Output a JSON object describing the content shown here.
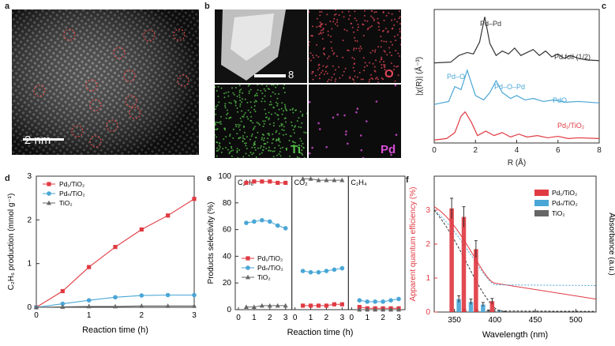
{
  "panel_labels": {
    "a": "a",
    "b": "b",
    "c": "c",
    "d": "d",
    "e": "e",
    "f": "f"
  },
  "panel_a": {
    "scale_bar": "2 nm"
  },
  "panel_b": {
    "scale_bar": "8 nm",
    "maps": [
      "O",
      "Ti",
      "Pd"
    ],
    "map_colors": [
      "#e0485a",
      "#56c24a",
      "#d84ed8"
    ]
  },
  "colors": {
    "red": "#e03a42",
    "blue": "#4aa6d6",
    "gray": "#666666"
  },
  "chart_data": [
    {
      "panel": "c",
      "type": "line",
      "xlabel": "R (Å)",
      "ylabel": "|χ(R)| (Å⁻³)",
      "xlim": [
        0,
        8
      ],
      "xticks": [
        0,
        2,
        4,
        6,
        8
      ],
      "series": [
        {
          "name": "Pd foil (1/2)",
          "color": "#333333",
          "offset": 5.4,
          "x": [
            0,
            0.8,
            1.2,
            1.6,
            1.9,
            2.2,
            2.45,
            2.7,
            3.0,
            3.3,
            3.6,
            3.9,
            4.2,
            4.5,
            4.8,
            5.1,
            5.4,
            5.7,
            6.0,
            6.3,
            6.6,
            7.0,
            7.4,
            8.0
          ],
          "y": [
            0,
            0.05,
            0.5,
            0.7,
            0.6,
            1.4,
            3.1,
            1.3,
            0.5,
            0.8,
            0.6,
            1.0,
            0.5,
            0.7,
            0.9,
            0.5,
            0.8,
            0.4,
            0.6,
            0.3,
            0.5,
            0.3,
            0.2,
            0.15
          ]
        },
        {
          "name": "PdO",
          "color": "#4aa6d6",
          "offset": 2.6,
          "x": [
            0,
            0.7,
            1.0,
            1.3,
            1.6,
            2.0,
            2.4,
            2.7,
            3.0,
            3.3,
            3.7,
            4.0,
            4.4,
            4.8,
            5.3,
            5.8,
            6.4,
            7.0,
            8.0
          ],
          "y": [
            0,
            0.2,
            1.2,
            1.0,
            2.3,
            0.6,
            0.3,
            0.8,
            1.6,
            0.8,
            0.4,
            0.6,
            0.3,
            0.4,
            0.2,
            0.3,
            0.15,
            0.2,
            0.1
          ]
        },
        {
          "name": "Pd₁/TiO₂",
          "color": "#e03a42",
          "offset": 0.2,
          "x": [
            0,
            0.6,
            1.0,
            1.3,
            1.5,
            1.8,
            2.1,
            2.5,
            2.9,
            3.3,
            3.7,
            4.1,
            4.5,
            5.0,
            5.5,
            6.0,
            6.5,
            7.0,
            8.0
          ],
          "y": [
            0,
            0.1,
            0.5,
            1.6,
            1.9,
            1.2,
            0.3,
            0.6,
            0.3,
            0.5,
            0.2,
            0.4,
            0.2,
            0.3,
            0.15,
            0.25,
            0.1,
            0.15,
            0.1
          ]
        }
      ],
      "annotations": [
        "Pd–Pd",
        "Pd–O",
        "Pd–O–Pd"
      ]
    },
    {
      "panel": "d",
      "type": "line",
      "xlabel": "Reaction time (h)",
      "ylabel": "C₂H₆ production (mmol g⁻¹)",
      "xlim": [
        0,
        3
      ],
      "ylim": [
        0,
        3
      ],
      "xticks": [
        0,
        1,
        2,
        3
      ],
      "yticks": [
        0,
        1,
        2,
        3
      ],
      "x": [
        0,
        0.5,
        1,
        1.5,
        2,
        2.5,
        3
      ],
      "series": [
        {
          "name": "Pd₁/TiO₂",
          "color": "#e03a42",
          "marker": "square",
          "values": [
            0,
            0.37,
            0.92,
            1.38,
            1.78,
            2.1,
            2.48
          ]
        },
        {
          "name": "Pdₙ/TiO₂",
          "color": "#4aa6d6",
          "marker": "circle",
          "values": [
            0,
            0.08,
            0.16,
            0.23,
            0.27,
            0.28,
            0.28
          ]
        },
        {
          "name": "TiO₂",
          "color": "#666666",
          "marker": "triangle",
          "values": [
            0,
            0.01,
            0.02,
            0.02,
            0.03,
            0.03,
            0.03
          ]
        }
      ]
    },
    {
      "panel": "e",
      "type": "line",
      "ylabel": "Products selectivity (%)",
      "xlabel": "Reaction time (h)",
      "ylim": [
        0,
        100
      ],
      "yticks": [
        0,
        20,
        40,
        60,
        80,
        100
      ],
      "xticks": [
        0,
        1,
        2,
        3
      ],
      "x": [
        0.5,
        1,
        1.5,
        2,
        2.5,
        3
      ],
      "subpanels": [
        {
          "title": "C₂H₆",
          "series": [
            {
              "name": "Pd₁/TiO₂",
              "color": "#e03a42",
              "marker": "square",
              "values": [
                95,
                96,
                96,
                96,
                95,
                95
              ]
            },
            {
              "name": "Pdₙ/TiO₂",
              "color": "#4aa6d6",
              "marker": "circle",
              "values": [
                65,
                66,
                67,
                66,
                63,
                61
              ]
            },
            {
              "name": "TiO₂",
              "color": "#666666",
              "marker": "triangle",
              "values": [
                2,
                2,
                3,
                3,
                3,
                3
              ]
            }
          ]
        },
        {
          "title": "CO₂",
          "series": [
            {
              "name": "Pd₁/TiO₂",
              "color": "#e03a42",
              "marker": "square",
              "values": [
                3,
                3,
                3,
                3,
                4,
                4
              ]
            },
            {
              "name": "Pdₙ/TiO₂",
              "color": "#4aa6d6",
              "marker": "circle",
              "values": [
                29,
                28,
                28,
                29,
                30,
                31
              ]
            },
            {
              "name": "TiO₂",
              "color": "#666666",
              "marker": "triangle",
              "values": [
                98,
                98,
                97,
                97,
                97,
                97
              ]
            }
          ]
        },
        {
          "title": "C₂H₄",
          "series": [
            {
              "name": "Pd₁/TiO₂",
              "color": "#e03a42",
              "marker": "square",
              "values": [
                2,
                1,
                1,
                1,
                1,
                1
              ]
            },
            {
              "name": "Pdₙ/TiO₂",
              "color": "#4aa6d6",
              "marker": "circle",
              "values": [
                7,
                6,
                6,
                6,
                7,
                8
              ]
            },
            {
              "name": "TiO₂",
              "color": "#666666",
              "marker": "triangle",
              "values": [
                0,
                0,
                0,
                0,
                0,
                0
              ]
            }
          ]
        }
      ]
    },
    {
      "panel": "f",
      "type": "bar",
      "xlabel": "Wavelength (nm)",
      "ylabel_left": "Apparent quantum efficiency (%)",
      "ylabel_right": "Absorbance (a.u.)",
      "xlim": [
        325,
        525
      ],
      "xticks": [
        350,
        400,
        450,
        500
      ],
      "ylim": [
        0,
        4
      ],
      "yticks": [
        0,
        1,
        2,
        3
      ],
      "categories": [
        350,
        365,
        380,
        400
      ],
      "series": [
        {
          "name": "Pd₁/TiO₂",
          "color": "#e03a42",
          "values": [
            3.05,
            2.8,
            1.85,
            0.32
          ],
          "errors": [
            0.3,
            0.3,
            0.25,
            0.08
          ]
        },
        {
          "name": "Pdₙ/TiO₂",
          "color": "#4aa6d6",
          "values": [
            0.38,
            0.3,
            0.22,
            0.03
          ],
          "errors": [
            0.1,
            0.08,
            0.06,
            0.02
          ]
        },
        {
          "name": "TiO₂",
          "color": "#666666",
          "values": [
            0.06,
            0.05,
            0.04,
            0.01
          ],
          "errors": [
            0.03,
            0.02,
            0.02,
            0.01
          ]
        }
      ]
    }
  ]
}
